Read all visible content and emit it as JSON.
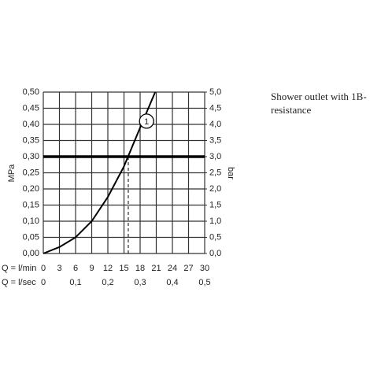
{
  "chart_data": {
    "type": "line",
    "ylabel": "MPa",
    "y2label": "bar",
    "xlabel": "Q = l/min",
    "x2label": "Q = l/sec",
    "xlim": [
      0,
      30
    ],
    "xticks": [
      0,
      3,
      6,
      9,
      12,
      15,
      18,
      21,
      24,
      27,
      30
    ],
    "x2lim": [
      0,
      0.5
    ],
    "x2ticks": [
      0,
      {
        "value": 0.1,
        "label": "0,1"
      },
      {
        "value": 0.2,
        "label": "0,2"
      },
      {
        "value": 0.3,
        "label": "0,3"
      },
      {
        "value": 0.4,
        "label": "0,4"
      },
      {
        "value": 0.5,
        "label": "0,5"
      }
    ],
    "ylim": [
      0,
      0.5
    ],
    "yticks": [
      {
        "value": 0,
        "label": "0,00"
      },
      {
        "value": 0.05,
        "label": "0,05"
      },
      {
        "value": 0.1,
        "label": "0,10"
      },
      {
        "value": 0.15,
        "label": "0,15"
      },
      {
        "value": 0.2,
        "label": "0,20"
      },
      {
        "value": 0.25,
        "label": "0,25"
      },
      {
        "value": 0.3,
        "label": "0,30"
      },
      {
        "value": 0.35,
        "label": "0,35"
      },
      {
        "value": 0.4,
        "label": "0,40"
      },
      {
        "value": 0.45,
        "label": "0,45"
      },
      {
        "value": 0.5,
        "label": "0,50"
      }
    ],
    "y2lim": [
      0,
      5
    ],
    "y2ticks": [
      {
        "value": 0,
        "label": "0,0"
      },
      {
        "value": 0.5,
        "label": "0,5"
      },
      {
        "value": 1,
        "label": "1,0"
      },
      {
        "value": 1.5,
        "label": "1,5"
      },
      {
        "value": 2,
        "label": "2,0"
      },
      {
        "value": 2.5,
        "label": "2,5"
      },
      {
        "value": 3,
        "label": "3,0"
      },
      {
        "value": 3.5,
        "label": "3,5"
      },
      {
        "value": 4,
        "label": "4,0"
      },
      {
        "value": 4.5,
        "label": "4,5"
      },
      {
        "value": 5,
        "label": "5,0"
      }
    ],
    "grid": true,
    "series": [
      {
        "color": "#000000",
        "x": [
          0,
          3,
          6,
          9,
          12,
          15,
          18,
          20.8
        ],
        "values": [
          0,
          0.02,
          0.05,
          0.1,
          0.175,
          0.27,
          0.39,
          0.5
        ]
      }
    ],
    "reference_y": 0.3,
    "marker_x": 15.8,
    "annotation": {
      "text": "1",
      "x": 19.2,
      "y": 0.41
    },
    "note": "Shower outlet with 1B-resistance"
  }
}
